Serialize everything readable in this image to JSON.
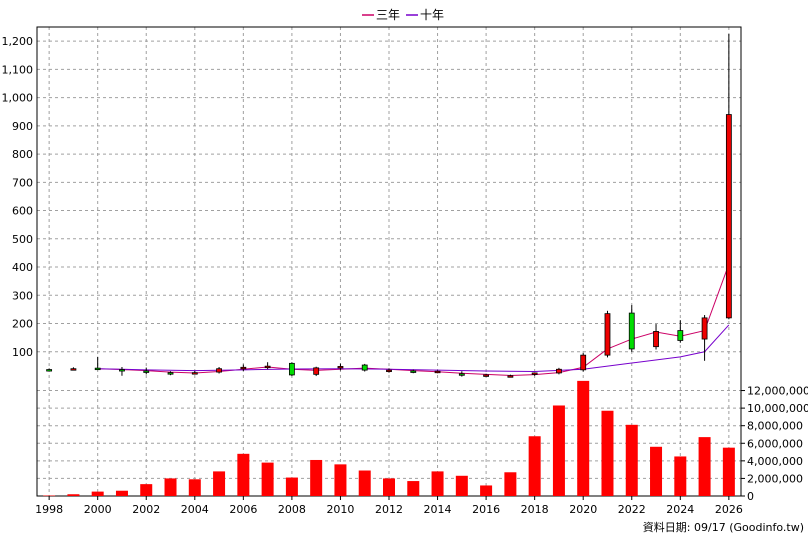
{
  "chart_data": {
    "type": "candlestick-with-volume",
    "legend": [
      {
        "name": "三年",
        "color": "#cc0066"
      },
      {
        "name": "十年",
        "color": "#7700cc"
      }
    ],
    "price_axis": {
      "ylim": [
        0,
        1250
      ],
      "ticks": [
        100,
        200,
        300,
        400,
        500,
        600,
        700,
        800,
        900,
        1000,
        1100,
        1200
      ],
      "tick_labels": [
        "100",
        "200",
        "300",
        "400",
        "500",
        "600",
        "700",
        "800",
        "900",
        "1,000",
        "1,100",
        "1,200"
      ]
    },
    "volume_axis": {
      "ylim": [
        0,
        13200000
      ],
      "ticks": [
        0,
        2000000,
        4000000,
        6000000,
        8000000,
        10000000,
        12000000
      ],
      "tick_labels": [
        "0",
        "2,000,000",
        "4,000,000",
        "6,000,000",
        "8,000,000",
        "10,000,000",
        "12,000,000"
      ]
    },
    "x_axis": {
      "tick_labels": [
        "1998",
        "2000",
        "2002",
        "2004",
        "2006",
        "2008",
        "2010",
        "2012",
        "2014",
        "2016",
        "2018",
        "2020",
        "2022",
        "2024",
        "2026"
      ],
      "tick_years": [
        1998,
        2000,
        2002,
        2004,
        2006,
        2008,
        2010,
        2012,
        2014,
        2016,
        2018,
        2020,
        2022,
        2024,
        2026
      ]
    },
    "candles": [
      {
        "year": 1998,
        "open": 37,
        "high": 41,
        "low": 32,
        "close": 36
      },
      {
        "year": 1999,
        "open": 38,
        "high": 45,
        "low": 34,
        "close": 40
      },
      {
        "year": 2000,
        "open": 42,
        "high": 82,
        "low": 35,
        "close": 38
      },
      {
        "year": 2001,
        "open": 37,
        "high": 46,
        "low": 15,
        "close": 35
      },
      {
        "year": 2002,
        "open": 32,
        "high": 44,
        "low": 20,
        "close": 29
      },
      {
        "year": 2003,
        "open": 26,
        "high": 31,
        "low": 17,
        "close": 25
      },
      {
        "year": 2004,
        "open": 24,
        "high": 32,
        "low": 20,
        "close": 26
      },
      {
        "year": 2005,
        "open": 28,
        "high": 46,
        "low": 23,
        "close": 40
      },
      {
        "year": 2006,
        "open": 40,
        "high": 55,
        "low": 32,
        "close": 45
      },
      {
        "year": 2007,
        "open": 44,
        "high": 63,
        "low": 38,
        "close": 49
      },
      {
        "year": 2008,
        "open": 59,
        "high": 63,
        "low": 14,
        "close": 18
      },
      {
        "year": 2009,
        "open": 20,
        "high": 47,
        "low": 14,
        "close": 43
      },
      {
        "year": 2010,
        "open": 43,
        "high": 58,
        "low": 34,
        "close": 48
      },
      {
        "year": 2011,
        "open": 53,
        "high": 57,
        "low": 30,
        "close": 35
      },
      {
        "year": 2012,
        "open": 33,
        "high": 41,
        "low": 26,
        "close": 35
      },
      {
        "year": 2013,
        "open": 32,
        "high": 37,
        "low": 24,
        "close": 29
      },
      {
        "year": 2014,
        "open": 29,
        "high": 34,
        "low": 24,
        "close": 31
      },
      {
        "year": 2015,
        "open": 22,
        "high": 31,
        "low": 12,
        "close": 18
      },
      {
        "year": 2016,
        "open": 17,
        "high": 22,
        "low": 12,
        "close": 18
      },
      {
        "year": 2017,
        "open": 15,
        "high": 19,
        "low": 10,
        "close": 15
      },
      {
        "year": 2018,
        "open": 22,
        "high": 27,
        "low": 15,
        "close": 25
      },
      {
        "year": 2019,
        "open": 25,
        "high": 43,
        "low": 20,
        "close": 38
      },
      {
        "year": 2020,
        "open": 36,
        "high": 95,
        "low": 30,
        "close": 88
      },
      {
        "year": 2021,
        "open": 88,
        "high": 245,
        "low": 80,
        "close": 235
      },
      {
        "year": 2022,
        "open": 237,
        "high": 265,
        "low": 100,
        "close": 110
      },
      {
        "year": 2023,
        "open": 118,
        "high": 198,
        "low": 108,
        "close": 172
      },
      {
        "year": 2024,
        "open": 175,
        "high": 212,
        "low": 132,
        "close": 140
      },
      {
        "year": 2025,
        "open": 145,
        "high": 230,
        "low": 68,
        "close": 220
      },
      {
        "year": 2026,
        "open": 220,
        "high": 1225,
        "low": 215,
        "close": 940
      }
    ],
    "series": [
      {
        "name": "三年",
        "x": [
          2000,
          2001,
          2002,
          2003,
          2004,
          2005,
          2006,
          2007,
          2008,
          2009,
          2010,
          2011,
          2012,
          2013,
          2014,
          2015,
          2016,
          2017,
          2018,
          2019,
          2020,
          2021,
          2022,
          2023,
          2024,
          2025,
          2026
        ],
        "values": [
          40,
          37,
          33,
          28,
          25,
          30,
          38,
          46,
          38,
          34,
          38,
          42,
          38,
          33,
          29,
          24,
          20,
          16,
          19,
          26,
          45,
          110,
          145,
          170,
          155,
          175,
          410
        ]
      },
      {
        "name": "十年",
        "x": [
          2000,
          2002,
          2004,
          2006,
          2008,
          2010,
          2012,
          2014,
          2016,
          2018,
          2020,
          2022,
          2024,
          2025,
          2026
        ],
        "values": [
          40,
          36,
          33,
          36,
          39,
          40,
          38,
          35,
          32,
          30,
          38,
          60,
          82,
          100,
          195
        ]
      }
    ],
    "volume": [
      {
        "year": 1998,
        "value": 50000
      },
      {
        "year": 1999,
        "value": 200000
      },
      {
        "year": 2000,
        "value": 500000
      },
      {
        "year": 2001,
        "value": 600000
      },
      {
        "year": 2002,
        "value": 1350000
      },
      {
        "year": 2003,
        "value": 2000000
      },
      {
        "year": 2004,
        "value": 1900000
      },
      {
        "year": 2005,
        "value": 2800000
      },
      {
        "year": 2006,
        "value": 4800000
      },
      {
        "year": 2007,
        "value": 3800000
      },
      {
        "year": 2008,
        "value": 2100000
      },
      {
        "year": 2009,
        "value": 4100000
      },
      {
        "year": 2010,
        "value": 3600000
      },
      {
        "year": 2011,
        "value": 2900000
      },
      {
        "year": 2012,
        "value": 2000000
      },
      {
        "year": 2013,
        "value": 1700000
      },
      {
        "year": 2014,
        "value": 2800000
      },
      {
        "year": 2015,
        "value": 2300000
      },
      {
        "year": 2016,
        "value": 1200000
      },
      {
        "year": 2017,
        "value": 2700000
      },
      {
        "year": 2018,
        "value": 6800000
      },
      {
        "year": 2019,
        "value": 10300000
      },
      {
        "year": 2020,
        "value": 13100000
      },
      {
        "year": 2021,
        "value": 9700000
      },
      {
        "year": 2022,
        "value": 8100000
      },
      {
        "year": 2023,
        "value": 5600000
      },
      {
        "year": 2024,
        "value": 4500000
      },
      {
        "year": 2025,
        "value": 6700000
      },
      {
        "year": 2026,
        "value": 5500000
      }
    ],
    "colors": {
      "up": "#ee0000",
      "down": "#00dd00",
      "volume": "#ff0000",
      "grid": "#a0a0a0"
    },
    "grid": true,
    "legend_placement": "top-center"
  },
  "footer": {
    "source_text": "資料日期: 09/17  (Goodinfo.tw)"
  }
}
